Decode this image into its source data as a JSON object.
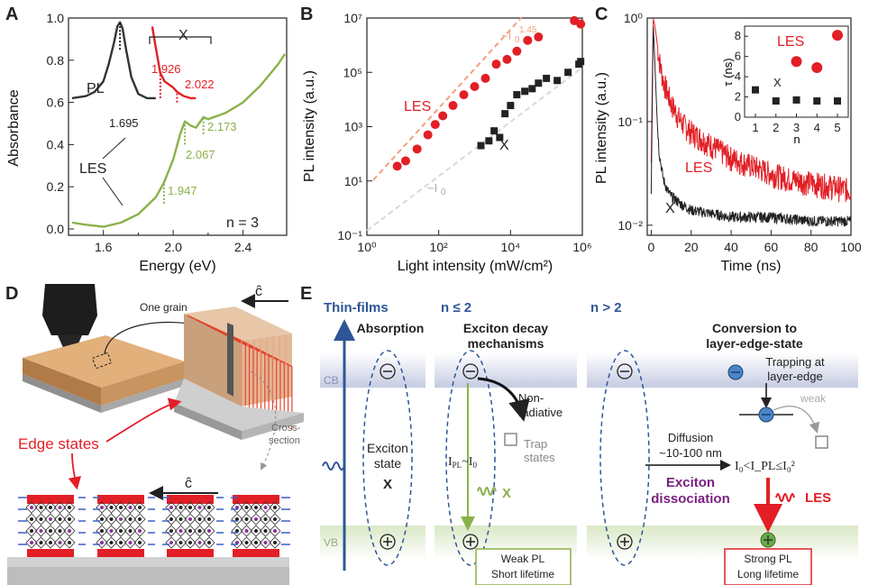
{
  "panels": {
    "A": {
      "label": "A"
    },
    "B": {
      "label": "B"
    },
    "C": {
      "label": "C"
    },
    "D": {
      "label": "D"
    },
    "E": {
      "label": "E"
    }
  },
  "colors": {
    "red": "#e21f26",
    "green": "#8ab14a",
    "black": "#222222",
    "blue": "#2f5597",
    "purple": "#7a2180",
    "gray": "#999999"
  },
  "chart_data": [
    {
      "panel": "A",
      "type": "line",
      "xlabel": "Energy (eV)",
      "ylabel": "Absorbance",
      "xlim": [
        1.4,
        2.65
      ],
      "ylim": [
        -0.03,
        1.0
      ],
      "xticks": [
        "1.6",
        "2.0",
        "2.4"
      ],
      "yticks": [
        "0.0",
        "0.2",
        "0.4",
        "0.6",
        "0.8",
        "1.0"
      ],
      "series": [
        {
          "name": "PL",
          "color": "#333333",
          "x": [
            1.42,
            1.5,
            1.55,
            1.6,
            1.63,
            1.66,
            1.68,
            1.695,
            1.71,
            1.73,
            1.76,
            1.8,
            1.85,
            1.9
          ],
          "y": [
            0.62,
            0.63,
            0.65,
            0.7,
            0.78,
            0.88,
            0.96,
            0.98,
            0.95,
            0.85,
            0.72,
            0.64,
            0.62,
            0.62
          ]
        },
        {
          "name": "X",
          "color": "#e21f26",
          "x": [
            1.88,
            1.9,
            1.926,
            1.95,
            2.0,
            2.022,
            2.06,
            2.1,
            2.13
          ],
          "y": [
            0.96,
            0.86,
            0.74,
            0.7,
            0.67,
            0.65,
            0.63,
            0.62,
            0.62
          ]
        },
        {
          "name": "Absorbance",
          "color": "#8ab14a",
          "x": [
            1.42,
            1.5,
            1.6,
            1.7,
            1.8,
            1.9,
            1.947,
            2.0,
            2.04,
            2.067,
            2.1,
            2.13,
            2.173,
            2.2,
            2.3,
            2.4,
            2.5,
            2.6,
            2.64
          ],
          "y": [
            0.03,
            0.02,
            0.01,
            0.03,
            0.07,
            0.15,
            0.22,
            0.33,
            0.45,
            0.51,
            0.49,
            0.48,
            0.53,
            0.52,
            0.55,
            0.6,
            0.68,
            0.78,
            0.83
          ]
        }
      ],
      "annotations": {
        "pl": "PL",
        "x": "X",
        "les": "LES",
        "n": "n  =  3",
        "v1695": "1.695",
        "v1926": "1.926",
        "v2022": "2.022",
        "v1947": "1.947",
        "v2067": "2.067",
        "v2173": "2.173"
      }
    },
    {
      "panel": "B",
      "type": "scatter",
      "xlabel": "Light intensity (mW/cm²)",
      "ylabel": "PL intensity (a.u.)",
      "xscale": "log",
      "yscale": "log",
      "xlim": [
        1,
        1000000
      ],
      "ylim": [
        0.1,
        10000000
      ],
      "xticks": [
        "10⁰",
        "10²",
        "10⁴",
        "10⁶"
      ],
      "yticks": [
        "10⁻¹",
        "10¹",
        "10³",
        "10⁵",
        "10⁷"
      ],
      "series": [
        {
          "name": "LES",
          "color": "#e21f26",
          "x": [
            7,
            12,
            25,
            50,
            80,
            130,
            250,
            500,
            1000,
            2000,
            4000,
            8000,
            15000,
            30000,
            60000,
            600000,
            900000
          ],
          "y": [
            35,
            55,
            150,
            500,
            1200,
            2500,
            6000,
            15000,
            30000,
            60000,
            200000,
            300000,
            600000,
            1500000,
            2000000,
            8000000,
            6000000
          ]
        },
        {
          "name": "X",
          "color": "#222222",
          "x": [
            1500,
            2500,
            3500,
            5000,
            7000,
            10000,
            15000,
            25000,
            40000,
            60000,
            100000,
            200000,
            400000,
            800000,
            900000
          ],
          "y": [
            200,
            300,
            700,
            400,
            3000,
            6000,
            15000,
            20000,
            25000,
            40000,
            60000,
            50000,
            100000,
            200000,
            250000
          ]
        }
      ],
      "fits": {
        "les_label": "~I",
        "les_exp": "1.45",
        "x_label": "~I",
        "x_sub": "0",
        "les_sub": "0"
      },
      "legend": {
        "les": "LES",
        "x": "X"
      }
    },
    {
      "panel": "C",
      "type": "line",
      "xlabel": "Time (ns)",
      "ylabel": "PL intensity (a.u.)",
      "yscale": "log",
      "xlim": [
        -2,
        100
      ],
      "ylim": [
        0.008,
        1.0
      ],
      "xticks": [
        "0",
        "20",
        "40",
        "60",
        "80",
        "100"
      ],
      "yticks": [
        "10⁻²",
        "10⁻¹",
        "10⁰"
      ],
      "series": [
        {
          "name": "LES",
          "color": "#e21f26",
          "x": [
            0,
            1,
            2,
            4,
            6,
            10,
            15,
            20,
            30,
            40,
            50,
            60,
            70,
            80,
            90,
            100
          ],
          "y": [
            0.04,
            1.0,
            0.8,
            0.4,
            0.25,
            0.15,
            0.1,
            0.08,
            0.06,
            0.045,
            0.038,
            0.032,
            0.028,
            0.026,
            0.024,
            0.022
          ]
        },
        {
          "name": "X",
          "color": "#222222",
          "x": [
            0,
            1,
            2,
            3,
            4,
            6,
            8,
            10,
            15,
            20,
            30,
            40,
            60,
            80,
            100
          ],
          "y": [
            0.02,
            0.9,
            0.3,
            0.1,
            0.05,
            0.028,
            0.022,
            0.019,
            0.016,
            0.014,
            0.013,
            0.012,
            0.012,
            0.011,
            0.011
          ]
        }
      ],
      "legend": {
        "les": "LES",
        "x": "X"
      },
      "inset": {
        "xlabel": "n",
        "ylabel": "τ (ns)",
        "xticks": [
          "1",
          "2",
          "3",
          "4",
          "5"
        ],
        "yticks": [
          "0",
          "2",
          "4",
          "6",
          "8"
        ],
        "les": {
          "x": [
            3,
            4,
            5
          ],
          "y": [
            5.5,
            4.9,
            8.1
          ]
        },
        "x": {
          "x": [
            1,
            2,
            3,
            4,
            5
          ],
          "y": [
            2.7,
            1.6,
            1.7,
            1.6,
            1.6
          ]
        },
        "les_label": "LES",
        "x_label": "X"
      }
    }
  ],
  "panelD": {
    "one_grain": "One grain",
    "c_axis": "ĉ",
    "edge_states": "Edge states",
    "cross_section": "Cross-\nsection",
    "c_axis2": "ĉ"
  },
  "panelE": {
    "col1_title": "Thin-films",
    "col2_title": "n ≤ 2",
    "col3_title": "n > 2",
    "absorption": "Absorption",
    "exciton_decay": "Exciton decay",
    "mechanisms": "mechanisms",
    "conversion": "Conversion to",
    "layer_edge_state": "layer-edge-state",
    "cb": "CB",
    "vb": "VB",
    "exciton": "Exciton",
    "state": "state",
    "x_bold": "X",
    "non": "Non-",
    "radiative": "radiative",
    "trap": "Trap",
    "states": "states",
    "ipl_i0": "I",
    "x_green": "X",
    "weak_pl": "Weak PL",
    "short_lifetime": "Short lifetime",
    "diffusion": "Diffusion",
    "nm": "~10-100 nm",
    "exciton2": "Exciton",
    "dissociation": "dissociation",
    "trapping": "Trapping at",
    "layer_edge": "layer-edge",
    "weak": "weak",
    "ineq": "I₀<I_PL≤I₀²",
    "les": "LES",
    "strong_pl": "Strong PL",
    "long_lifetime": "Long lifetime"
  }
}
